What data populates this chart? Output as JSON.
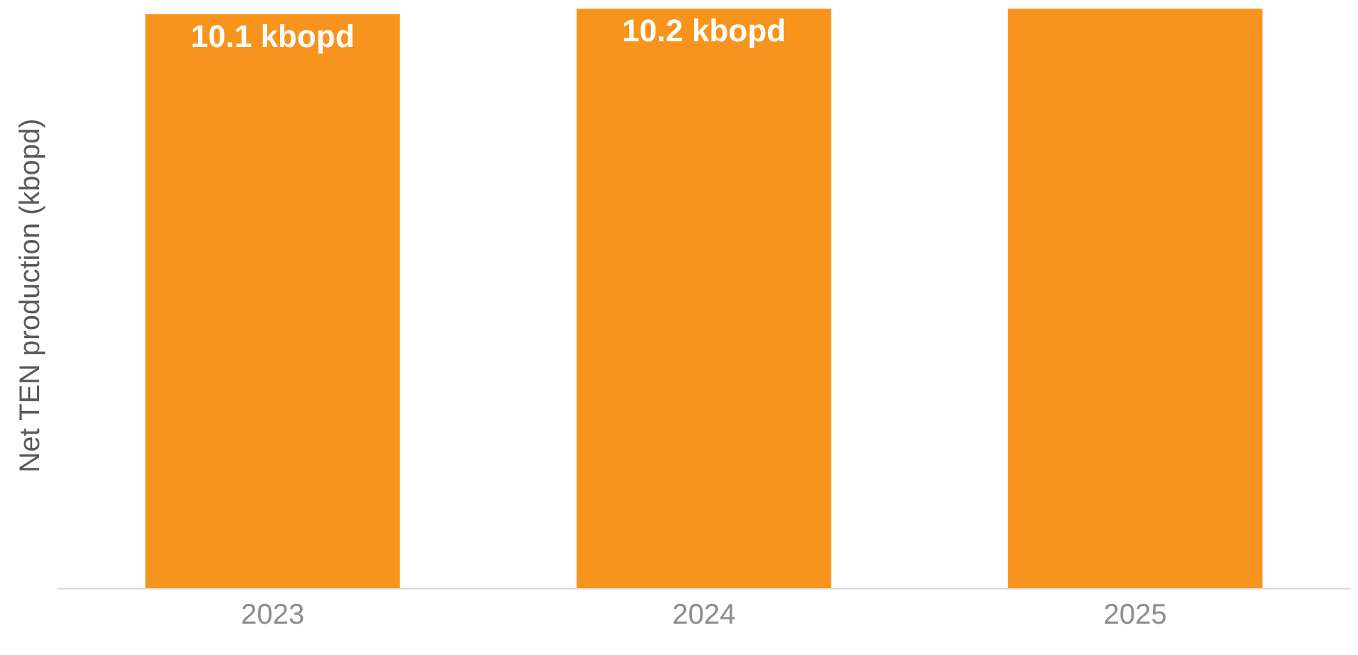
{
  "chart_data": {
    "type": "bar",
    "ylabel": "Net TEN production (kbopd)",
    "categories": [
      "2023",
      "2024",
      "2025"
    ],
    "values": [
      10.1,
      10.2,
      10.2
    ],
    "value_labels": [
      "10.1 kbopd",
      "10.2 kbopd",
      null
    ],
    "color": "#f7941d",
    "grid": false,
    "legend": false
  }
}
